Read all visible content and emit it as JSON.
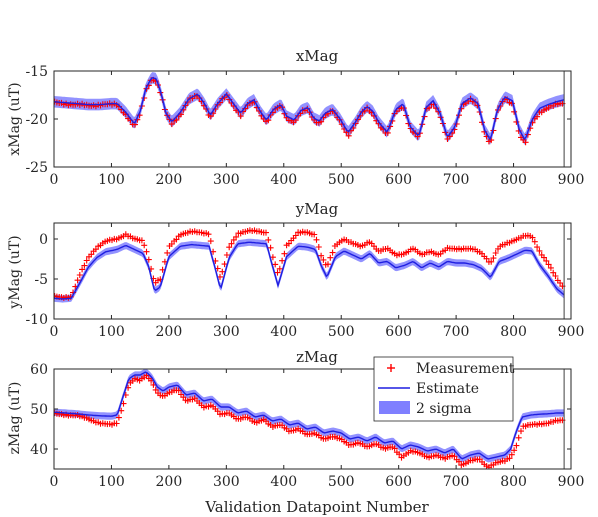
{
  "colors": {
    "measurement": "#ff0000",
    "estimate": "#1f1fe0",
    "band": "#7f7fff",
    "axis": "#262626",
    "vline": "#404040"
  },
  "figure": {
    "xlabel": "Validation Datapoint Number"
  },
  "legend": {
    "location": "inside zMag panel, top-right",
    "entries": [
      "Measurement",
      "Estimate",
      "2 sigma"
    ]
  },
  "chart_data": [
    {
      "type": "line",
      "title": "xMag",
      "xlabel": "",
      "ylabel": "xMag (uT)",
      "xlim": [
        0,
        900
      ],
      "ylim": [
        -25,
        -15
      ],
      "xticks": [
        0,
        100,
        200,
        300,
        400,
        500,
        600,
        700,
        800,
        900
      ],
      "yticks": [
        -25,
        -20,
        -15
      ],
      "xtick_labels": [
        "0",
        "100",
        "200",
        "300",
        "400",
        "500",
        "600",
        "700",
        "800",
        "900"
      ],
      "ytick_labels": [
        "-25",
        "-20",
        "-15"
      ],
      "vline_x": 888,
      "x": [
        0,
        20,
        40,
        60,
        80,
        100,
        110,
        125,
        140,
        150,
        160,
        170,
        178,
        185,
        195,
        205,
        220,
        235,
        250,
        262,
        272,
        285,
        300,
        315,
        325,
        337,
        348,
        360,
        370,
        382,
        395,
        405,
        418,
        430,
        442,
        452,
        462,
        472,
        485,
        498,
        512,
        525,
        535,
        545,
        555,
        565,
        580,
        595,
        608,
        620,
        635,
        648,
        660,
        672,
        685,
        698,
        710,
        725,
        738,
        750,
        760,
        772,
        785,
        798,
        810,
        820,
        832,
        845,
        860,
        875,
        888
      ],
      "series": [
        {
          "role": "measurement",
          "name": "Measurement",
          "values": [
            -18.3,
            -18.4,
            -18.5,
            -18.6,
            -18.5,
            -18.5,
            -18.5,
            -19.5,
            -20.8,
            -19.5,
            -17.0,
            -15.8,
            -16.0,
            -17.2,
            -19.5,
            -20.5,
            -19.5,
            -18.0,
            -17.6,
            -18.6,
            -19.8,
            -18.6,
            -17.5,
            -18.8,
            -19.6,
            -18.6,
            -18.2,
            -19.5,
            -20.3,
            -19.2,
            -18.6,
            -19.9,
            -20.3,
            -19.3,
            -19.0,
            -20.1,
            -20.4,
            -19.6,
            -19.2,
            -20.2,
            -21.7,
            -20.5,
            -19.5,
            -18.9,
            -19.4,
            -20.5,
            -21.7,
            -19.2,
            -18.6,
            -21.0,
            -22.0,
            -19.0,
            -18.3,
            -19.6,
            -22.2,
            -21.0,
            -18.6,
            -18.0,
            -18.6,
            -21.5,
            -22.5,
            -19.2,
            -17.9,
            -18.4,
            -21.5,
            -22.6,
            -20.5,
            -19.3,
            -18.8,
            -18.5,
            -18.4
          ]
        },
        {
          "role": "estimate",
          "name": "Estimate",
          "values": [
            -18.2,
            -18.3,
            -18.4,
            -18.5,
            -18.5,
            -18.4,
            -18.4,
            -19.3,
            -20.5,
            -19.2,
            -16.8,
            -15.7,
            -15.8,
            -17.0,
            -19.4,
            -20.3,
            -19.3,
            -17.9,
            -17.4,
            -18.4,
            -19.6,
            -18.4,
            -17.4,
            -18.6,
            -19.4,
            -18.4,
            -18.0,
            -19.3,
            -20.1,
            -19.0,
            -18.5,
            -19.7,
            -20.1,
            -19.1,
            -18.8,
            -19.9,
            -20.2,
            -19.4,
            -19.0,
            -20.0,
            -21.4,
            -20.3,
            -19.3,
            -18.7,
            -19.2,
            -20.3,
            -21.4,
            -19.0,
            -18.4,
            -20.8,
            -21.8,
            -18.8,
            -18.1,
            -19.4,
            -21.9,
            -20.8,
            -18.4,
            -17.8,
            -18.4,
            -21.2,
            -22.2,
            -19.0,
            -17.7,
            -18.1,
            -21.1,
            -22.2,
            -20.1,
            -18.9,
            -18.5,
            -18.2,
            -18.0
          ]
        }
      ],
      "band_2sigma": 0.6
    },
    {
      "type": "line",
      "title": "yMag",
      "xlabel": "",
      "ylabel": "yMag (uT)",
      "xlim": [
        0,
        900
      ],
      "ylim": [
        -10,
        2
      ],
      "xticks": [
        0,
        100,
        200,
        300,
        400,
        500,
        600,
        700,
        800,
        900
      ],
      "yticks": [
        -10,
        -5,
        0
      ],
      "xtick_labels": [
        "0",
        "100",
        "200",
        "300",
        "400",
        "500",
        "600",
        "700",
        "800",
        "900"
      ],
      "ytick_labels": [
        "-10",
        "-5",
        "0"
      ],
      "vline_x": 888,
      "x": [
        0,
        15,
        30,
        45,
        60,
        75,
        90,
        110,
        125,
        140,
        155,
        165,
        175,
        185,
        200,
        220,
        240,
        255,
        270,
        280,
        290,
        305,
        320,
        340,
        355,
        370,
        380,
        390,
        405,
        425,
        440,
        455,
        465,
        475,
        490,
        505,
        520,
        535,
        550,
        565,
        580,
        595,
        610,
        625,
        640,
        655,
        670,
        685,
        700,
        715,
        730,
        745,
        760,
        775,
        790,
        805,
        820,
        832,
        845,
        860,
        875,
        888
      ],
      "series": [
        {
          "role": "measurement",
          "name": "Measurement",
          "values": [
            -7.2,
            -7.3,
            -7.2,
            -4.5,
            -2.3,
            -1.0,
            -0.3,
            0.0,
            0.6,
            0.0,
            -0.3,
            -2.5,
            -5.5,
            -5.0,
            -1.0,
            0.6,
            0.9,
            0.8,
            0.7,
            -2.5,
            -5.0,
            -1.0,
            0.7,
            1.0,
            1.0,
            0.8,
            -2.0,
            -4.5,
            -0.8,
            0.8,
            0.8,
            0.5,
            -2.0,
            -3.5,
            -0.8,
            0.0,
            -0.5,
            -1.0,
            -0.3,
            -1.5,
            -1.2,
            -2.0,
            -1.8,
            -1.2,
            -2.0,
            -1.5,
            -2.0,
            -1.2,
            -1.2,
            -1.2,
            -1.3,
            -1.8,
            -3.0,
            -1.0,
            -0.5,
            0.0,
            0.4,
            0.3,
            -1.5,
            -3.0,
            -5.0,
            -6.2
          ]
        },
        {
          "role": "estimate",
          "name": "Estimate",
          "values": [
            -7.4,
            -7.5,
            -7.4,
            -5.5,
            -3.5,
            -2.3,
            -1.6,
            -1.3,
            -0.8,
            -1.3,
            -1.8,
            -3.5,
            -6.5,
            -6.0,
            -2.2,
            -0.9,
            -0.7,
            -0.8,
            -0.9,
            -3.5,
            -6.3,
            -2.3,
            -0.6,
            -0.4,
            -0.5,
            -0.6,
            -3.3,
            -5.8,
            -2.2,
            -0.9,
            -1.0,
            -1.3,
            -3.3,
            -4.8,
            -2.2,
            -1.5,
            -2.0,
            -2.5,
            -1.8,
            -3.0,
            -2.8,
            -3.6,
            -3.3,
            -2.8,
            -3.6,
            -3.0,
            -3.5,
            -2.8,
            -3.0,
            -3.0,
            -3.2,
            -3.7,
            -4.8,
            -2.8,
            -2.4,
            -1.9,
            -1.4,
            -1.5,
            -3.2,
            -4.6,
            -6.2,
            -7.0
          ]
        }
      ],
      "band_2sigma": 0.45
    },
    {
      "type": "line",
      "title": "zMag",
      "xlabel": "Validation Datapoint Number",
      "ylabel": "zMag (uT)",
      "xlim": [
        0,
        900
      ],
      "ylim": [
        35,
        60
      ],
      "xticks": [
        0,
        100,
        200,
        300,
        400,
        500,
        600,
        700,
        800,
        900
      ],
      "yticks": [
        40,
        50,
        60
      ],
      "xtick_labels": [
        "0",
        "100",
        "200",
        "300",
        "400",
        "500",
        "600",
        "700",
        "800",
        "900"
      ],
      "ytick_labels": [
        "40",
        "50",
        "60"
      ],
      "vline_x": 888,
      "x": [
        0,
        20,
        40,
        60,
        80,
        100,
        110,
        120,
        130,
        140,
        150,
        160,
        170,
        180,
        190,
        200,
        215,
        230,
        245,
        260,
        275,
        290,
        305,
        320,
        335,
        350,
        365,
        380,
        395,
        410,
        425,
        440,
        455,
        470,
        485,
        500,
        515,
        530,
        545,
        560,
        575,
        590,
        605,
        620,
        635,
        650,
        665,
        680,
        695,
        710,
        725,
        740,
        755,
        770,
        785,
        795,
        805,
        815,
        830,
        845,
        860,
        875,
        888
      ],
      "series": [
        {
          "role": "measurement",
          "name": "Measurement",
          "values": [
            48.8,
            48.6,
            48.4,
            47.5,
            46.5,
            46.0,
            46.5,
            51.0,
            56.0,
            57.5,
            57.0,
            58.5,
            57.0,
            54.0,
            53.0,
            54.0,
            55.0,
            52.0,
            52.5,
            50.5,
            51.0,
            48.5,
            49.0,
            47.5,
            48.0,
            46.5,
            47.5,
            45.5,
            46.0,
            44.5,
            45.0,
            43.5,
            44.0,
            42.5,
            43.0,
            42.5,
            41.0,
            41.5,
            40.5,
            41.5,
            40.0,
            40.5,
            38.0,
            39.5,
            39.0,
            38.0,
            38.5,
            37.5,
            38.5,
            36.0,
            37.0,
            37.5,
            35.5,
            36.5,
            37.0,
            38.0,
            41.0,
            45.5,
            46.0,
            46.3,
            46.5,
            47.0,
            47.2
          ]
        },
        {
          "role": "estimate",
          "name": "Estimate",
          "values": [
            49.2,
            49.0,
            48.8,
            48.5,
            48.3,
            48.2,
            48.5,
            53.0,
            57.5,
            58.5,
            58.5,
            59.3,
            58.0,
            55.5,
            54.5,
            55.5,
            56.0,
            53.5,
            54.0,
            52.0,
            52.5,
            50.5,
            50.5,
            49.0,
            49.5,
            48.0,
            48.5,
            47.0,
            47.5,
            46.0,
            46.5,
            45.0,
            45.5,
            44.0,
            44.5,
            44.0,
            42.5,
            43.0,
            42.0,
            43.0,
            41.5,
            42.0,
            40.0,
            41.0,
            40.5,
            39.5,
            40.0,
            39.0,
            40.0,
            37.5,
            38.5,
            39.0,
            37.5,
            38.0,
            38.5,
            40.0,
            44.5,
            48.0,
            48.5,
            48.7,
            48.8,
            49.0,
            49.0
          ]
        }
      ],
      "band_2sigma": 0.9
    }
  ]
}
